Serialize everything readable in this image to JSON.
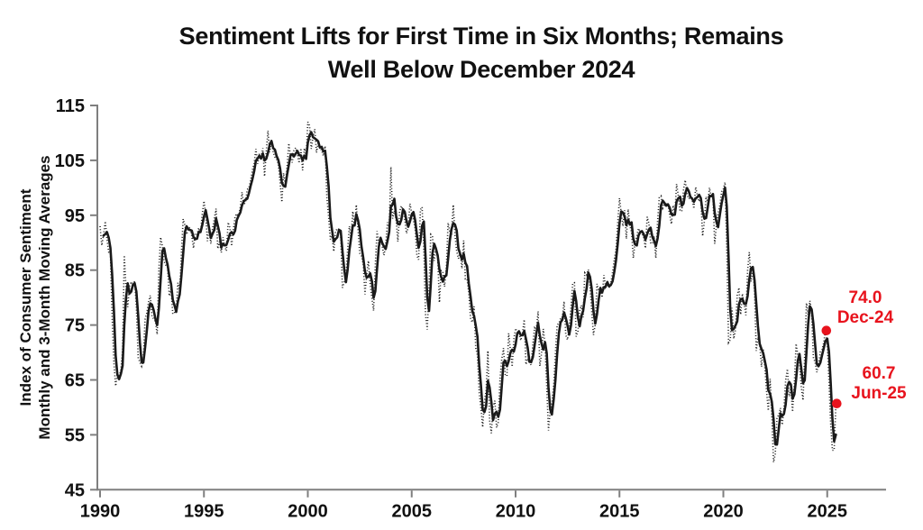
{
  "title": {
    "line1": "Sentiment Lifts for First Time in Six Months; Remains",
    "line2": "Well Below December 2024"
  },
  "colors": {
    "axis": "#7f7f7f",
    "text": "#111111",
    "series_line": "#1a1a1a",
    "annotation_red": "#e8131d",
    "background": "#ffffff"
  },
  "chart_data": {
    "type": "line",
    "title": "Sentiment Lifts for First Time in Six Months; Remains Well Below December 2024",
    "ylabel_line1": "Index of Consumer Sentiment",
    "ylabel_line2": "Monthly and 3-Month Moving Averages",
    "xlabel": "",
    "x_axis": {
      "ticks": [
        1990,
        1995,
        2000,
        2005,
        2010,
        2015,
        2020,
        2025
      ]
    },
    "y_axis": {
      "ticks": [
        45,
        55,
        65,
        75,
        85,
        95,
        105,
        115
      ],
      "min": 45,
      "max": 115
    },
    "grid": false,
    "legend": "none",
    "series": [
      {
        "name": "Monthly",
        "style": "dotted"
      },
      {
        "name": "3-Month Moving Average",
        "style": "solid",
        "window": 3
      }
    ],
    "monthly": {
      "start_year": 1990,
      "values": [
        93.0,
        89.5,
        91.3,
        93.9,
        90.6,
        88.3,
        88.2,
        76.4,
        68.1,
        63.9,
        66.0,
        65.5,
        66.8,
        70.4,
        87.7,
        81.8,
        78.3,
        82.1,
        82.9,
        82.0,
        83.0,
        78.3,
        69.1,
        68.2,
        67.5,
        68.8,
        76.0,
        77.2,
        79.2,
        80.4,
        76.6,
        76.1,
        75.6,
        73.3,
        85.3,
        91.0,
        89.3,
        86.6,
        85.9,
        85.6,
        80.3,
        81.5,
        77.0,
        77.3,
        77.9,
        82.7,
        81.2,
        88.2,
        94.3,
        93.2,
        91.5,
        92.6,
        92.8,
        91.2,
        89.0,
        91.7,
        91.5,
        92.7,
        91.6,
        95.1,
        97.6,
        95.1,
        90.3,
        92.5,
        89.8,
        92.7,
        94.4,
        96.2,
        88.9,
        90.2,
        88.2,
        91.0,
        89.3,
        88.5,
        93.7,
        92.7,
        89.4,
        92.4,
        94.7,
        95.3,
        94.7,
        96.5,
        99.2,
        96.9,
        97.4,
        99.7,
        100.0,
        101.4,
        103.2,
        104.5,
        107.1,
        104.4,
        106.0,
        105.6,
        107.2,
        102.1,
        106.6,
        110.4,
        106.5,
        108.7,
        106.5,
        105.6,
        105.2,
        104.4,
        100.9,
        97.4,
        102.7,
        100.5,
        103.9,
        108.1,
        105.7,
        104.6,
        106.8,
        107.3,
        106.0,
        104.5,
        107.2,
        103.2,
        107.2,
        105.4,
        112.0,
        111.3,
        107.1,
        109.2,
        110.7,
        106.4,
        108.3,
        107.3,
        106.8,
        105.8,
        107.6,
        98.4,
        94.7,
        90.6,
        91.5,
        88.4,
        92.0,
        92.6,
        92.4,
        91.5,
        81.8,
        82.7,
        83.9,
        88.8,
        93.0,
        90.7,
        95.7,
        93.0,
        96.9,
        92.4,
        88.1,
        87.6,
        86.1,
        80.6,
        84.2,
        86.7,
        82.4,
        79.9,
        77.6,
        86.0,
        92.1,
        89.7,
        90.9,
        89.3,
        87.7,
        89.6,
        93.7,
        92.6,
        103.8,
        94.4,
        95.8,
        94.2,
        90.2,
        95.6,
        96.7,
        95.9,
        94.2,
        91.7,
        92.8,
        97.1,
        95.5,
        94.1,
        92.6,
        87.7,
        86.9,
        96.0,
        96.5,
        89.1,
        76.9,
        74.2,
        81.6,
        91.5,
        91.2,
        86.7,
        88.9,
        87.4,
        79.1,
        84.9,
        84.7,
        82.0,
        85.4,
        93.6,
        92.1,
        91.7,
        96.9,
        91.3,
        88.4,
        87.1,
        88.3,
        85.3,
        90.4,
        83.4,
        83.4,
        80.9,
        76.1,
        75.5,
        78.4,
        70.8,
        69.5,
        62.6,
        59.8,
        56.4,
        61.2,
        63.0,
        70.3,
        57.6,
        55.3,
        60.1,
        61.2,
        56.3,
        57.3,
        65.1,
        68.7,
        70.8,
        66.0,
        65.7,
        73.5,
        70.6,
        67.4,
        72.5,
        74.4,
        73.6,
        73.6,
        72.2,
        73.6,
        76.0,
        67.8,
        68.9,
        68.2,
        67.7,
        71.6,
        74.5,
        74.2,
        77.5,
        67.5,
        69.8,
        74.3,
        71.5,
        63.7,
        55.8,
        59.4,
        60.9,
        64.1,
        69.9,
        75.0,
        75.3,
        76.2,
        76.4,
        79.3,
        73.2,
        72.3,
        74.3,
        78.3,
        82.6,
        82.7,
        72.9,
        73.8,
        77.6,
        78.6,
        76.4,
        84.5,
        84.1,
        85.1,
        82.1,
        77.5,
        73.2,
        75.1,
        82.5,
        81.2,
        81.6,
        80.0,
        84.1,
        81.9,
        82.5,
        81.8,
        82.5,
        84.6,
        86.9,
        88.8,
        93.6,
        98.1,
        95.4,
        93.0,
        95.9,
        90.7,
        96.1,
        93.1,
        91.9,
        87.2,
        90.0,
        91.3,
        92.6,
        92.0,
        91.7,
        91.0,
        89.0,
        94.7,
        93.5,
        90.0,
        89.8,
        91.2,
        87.2,
        93.8,
        98.2,
        98.5,
        96.3,
        96.9,
        97.0,
        97.1,
        95.0,
        93.4,
        96.8,
        95.1,
        100.7,
        98.5,
        95.9,
        95.7,
        99.7,
        101.4,
        98.8,
        98.0,
        98.2,
        97.9,
        96.2,
        100.1,
        98.6,
        97.5,
        98.3,
        91.2,
        93.8,
        98.4,
        97.2,
        100.0,
        98.2,
        98.4,
        89.8,
        93.2,
        95.5,
        96.8,
        99.3,
        99.8,
        101.0,
        89.1,
        71.8,
        72.3,
        78.1,
        72.5,
        74.1,
        80.4,
        81.8,
        76.9,
        80.7,
        79.0,
        76.8,
        84.9,
        88.3,
        82.9,
        85.5,
        81.2,
        70.3,
        72.8,
        71.7,
        67.4,
        70.6,
        67.2,
        62.8,
        59.4,
        65.2,
        58.4,
        50.0,
        51.5,
        58.2,
        58.6,
        59.9,
        56.8,
        59.7,
        64.9,
        67.0,
        62.0,
        63.5,
        59.2,
        64.4,
        71.6,
        69.5,
        68.1,
        63.8,
        61.3,
        69.7,
        79.0,
        76.9,
        79.4,
        77.2,
        69.1,
        68.2,
        66.4,
        67.9,
        70.1,
        70.5,
        71.8,
        74.0,
        71.7,
        64.7,
        57.0,
        52.2,
        52.2,
        60.7
      ]
    },
    "annotations": [
      {
        "value_label": "74.0",
        "date_label": "Dec-24",
        "value": 74.0,
        "year": 2024,
        "month": 12
      },
      {
        "value_label": "60.7",
        "date_label": "Jun-25",
        "value": 60.7,
        "year": 2025,
        "month": 6
      }
    ]
  }
}
